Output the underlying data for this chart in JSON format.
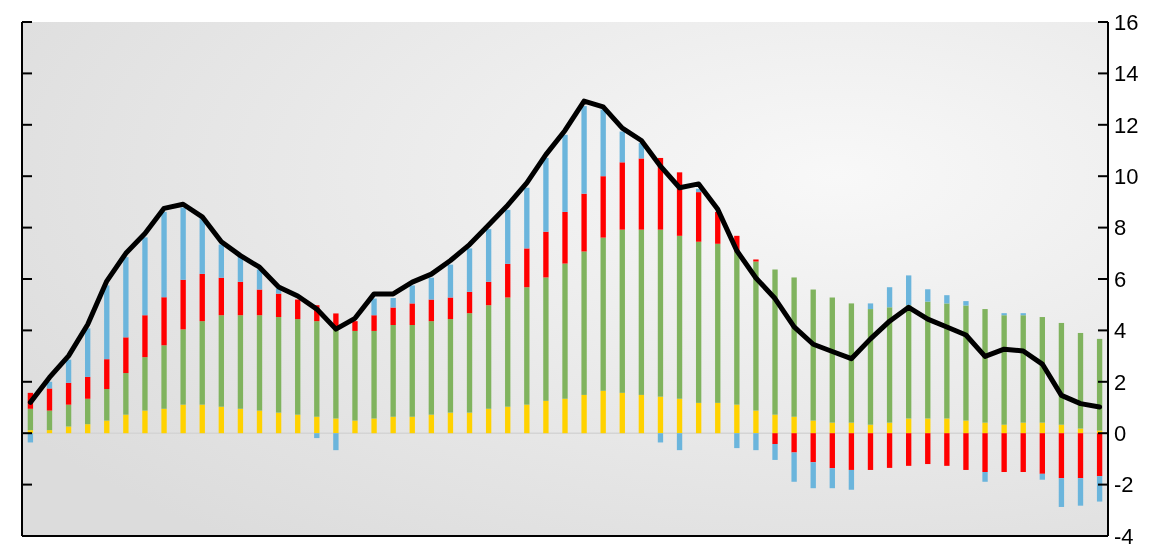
{
  "chart_data": {
    "type": "bar",
    "stacked": true,
    "categories": [
      null,
      null,
      null,
      null,
      null,
      null,
      null,
      null,
      null,
      null,
      null,
      null,
      null,
      null,
      null,
      null,
      null,
      null,
      null,
      null,
      null,
      null,
      null,
      null,
      null,
      null,
      null,
      null,
      null,
      null,
      null,
      null,
      null,
      null,
      null,
      null,
      null,
      null,
      null,
      null,
      null,
      null,
      null,
      null,
      null,
      null,
      null,
      null,
      null,
      null,
      null,
      null,
      null,
      null,
      null,
      null,
      null
    ],
    "series": [
      {
        "color": "#ffd200",
        "values": [
          0.12,
          0.12,
          0.26,
          0.35,
          0.49,
          0.72,
          0.88,
          0.95,
          1.11,
          1.11,
          1.03,
          0.95,
          0.88,
          0.8,
          0.72,
          0.64,
          0.57,
          0.49,
          0.57,
          0.64,
          0.64,
          0.72,
          0.8,
          0.8,
          0.95,
          1.03,
          1.11,
          1.26,
          1.34,
          1.49,
          1.65,
          1.57,
          1.49,
          1.42,
          1.34,
          1.18,
          1.18,
          1.11,
          0.88,
          0.72,
          0.64,
          0.49,
          0.41,
          0.41,
          0.33,
          0.41,
          0.57,
          0.57,
          0.57,
          0.49,
          0.41,
          0.33,
          0.41,
          0.41,
          0.33,
          0.18,
          0.1
        ]
      },
      {
        "color": "#80b35e",
        "values": [
          0.83,
          0.76,
          0.85,
          0.99,
          1.23,
          1.62,
          2.08,
          2.47,
          2.93,
          3.25,
          3.56,
          3.64,
          3.71,
          3.72,
          3.72,
          3.72,
          3.45,
          3.49,
          3.41,
          3.57,
          3.57,
          3.64,
          3.64,
          3.87,
          4.03,
          4.25,
          4.57,
          4.8,
          5.26,
          5.58,
          5.96,
          6.35,
          6.43,
          6.5,
          6.34,
          6.27,
          6.19,
          5.96,
          5.8,
          5.65,
          5.42,
          5.1,
          4.87,
          4.64,
          4.5,
          4.49,
          4.41,
          4.55,
          4.48,
          4.48,
          4.42,
          4.26,
          4.18,
          4.11,
          3.96,
          3.72,
          3.57
        ]
      },
      {
        "color": "#ff0000",
        "values": [
          0.62,
          0.86,
          0.85,
          0.85,
          1.16,
          1.39,
          1.63,
          1.87,
          1.93,
          1.84,
          1.46,
          1.3,
          1.0,
          0.91,
          0.76,
          0.62,
          0.64,
          0.38,
          0.61,
          0.68,
          0.84,
          0.84,
          0.84,
          0.83,
          0.91,
          1.31,
          1.51,
          1.78,
          2.01,
          2.25,
          2.39,
          2.62,
          2.77,
          2.79,
          2.47,
          1.93,
          1.24,
          0.61,
          0.08,
          -0.42,
          -0.75,
          -1.13,
          -1.36,
          -1.43,
          -1.43,
          -1.35,
          -1.27,
          -1.2,
          -1.27,
          -1.43,
          -1.51,
          -1.51,
          -1.51,
          -1.58,
          -1.75,
          -1.75,
          -1.67
        ]
      },
      {
        "color": "#6bb5dc",
        "values": [
          -0.36,
          0.26,
          0.9,
          1.89,
          2.87,
          3.12,
          3.03,
          3.32,
          2.81,
          2.17,
          1.29,
          1.02,
          0.78,
          0.19,
          null,
          -0.19,
          -0.66,
          null,
          0.65,
          0.37,
          0.7,
          0.85,
          1.28,
          1.69,
          2.05,
          2.1,
          2.36,
          2.87,
          3.0,
          3.41,
          2.6,
          1.2,
          0.6,
          -0.36,
          -0.66,
          0.13,
          null,
          -0.58,
          -0.66,
          -0.62,
          -1.14,
          -1.01,
          -0.78,
          -0.77,
          0.22,
          0.78,
          1.16,
          0.48,
          0.32,
          0.17,
          -0.38,
          0.08,
          0.08,
          -0.23,
          -1.12,
          -1.07,
          -0.99
        ]
      },
      {
        "type": "line",
        "color": "#000000",
        "values": [
          1.2,
          2.17,
          3.01,
          4.23,
          5.92,
          7.0,
          7.77,
          8.75,
          8.91,
          8.42,
          7.45,
          6.91,
          6.46,
          5.69,
          5.34,
          4.83,
          4.05,
          4.47,
          5.42,
          5.42,
          5.88,
          6.19,
          6.72,
          7.34,
          8.1,
          8.87,
          9.74,
          10.84,
          11.78,
          12.92,
          12.7,
          11.87,
          11.39,
          10.39,
          9.55,
          9.7,
          8.71,
          7.1,
          6.04,
          5.24,
          4.14,
          3.46,
          3.18,
          2.9,
          3.67,
          4.36,
          4.9,
          4.44,
          4.13,
          3.82,
          2.99,
          3.27,
          3.2,
          2.69,
          1.47,
          1.15,
          1.02
        ]
      }
    ],
    "ylim": [
      -4,
      16
    ],
    "yticks": [
      -4,
      -2,
      0,
      2,
      4,
      6,
      8,
      10,
      12,
      14,
      16
    ],
    "ref_lines": [
      {
        "axis": "y",
        "value": 0,
        "color": "#d4d4d4"
      }
    ],
    "tick_labels": "y"
  }
}
